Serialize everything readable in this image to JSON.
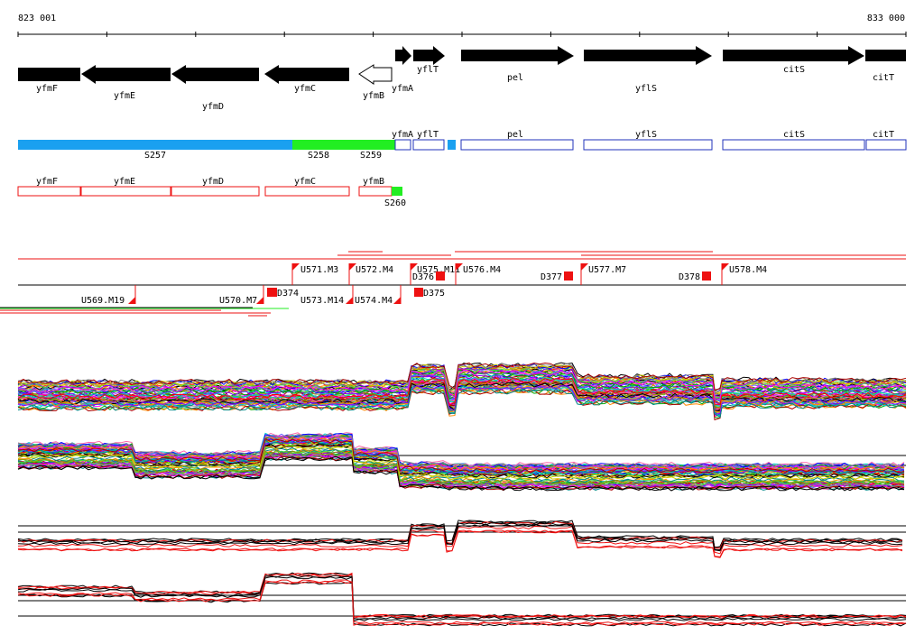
{
  "ruler": {
    "start": "823 001",
    "end": "833 000"
  },
  "colors": {
    "gene": "#000000",
    "blue": "#1aa0f0",
    "green": "#22ee22",
    "navy": "#2233bb",
    "red": "#ee1111",
    "black": "#000000"
  },
  "genes": [
    {
      "label": "yfmF",
      "strand": "minus",
      "filled": true
    },
    {
      "label": "yfmE",
      "strand": "minus",
      "filled": true
    },
    {
      "label": "yfmD",
      "strand": "minus",
      "filled": true
    },
    {
      "label": "yfmC",
      "strand": "minus",
      "filled": true
    },
    {
      "label": "yfmB",
      "strand": "minus",
      "filled": false
    },
    {
      "label": "yfmA",
      "strand": "plus",
      "filled": true
    },
    {
      "label": "yflT",
      "strand": "plus",
      "filled": true
    },
    {
      "label": "pel",
      "strand": "plus",
      "filled": true
    },
    {
      "label": "yflS",
      "strand": "plus",
      "filled": true
    },
    {
      "label": "citS",
      "strand": "plus",
      "filled": true
    },
    {
      "label": "citT",
      "strand": "plus",
      "filled": true
    }
  ],
  "segments_plus": [
    {
      "label": "S257",
      "color": "blue"
    },
    {
      "label": "S258",
      "color": "green"
    },
    {
      "label": "S259",
      "color": "green"
    }
  ],
  "boxes_plus": [
    "yfmA",
    "yflT",
    "pel",
    "yflS",
    "citS",
    "citT"
  ],
  "boxes_minus": [
    "yfmF",
    "yfmE",
    "yfmD",
    "yfmC",
    "yfmB"
  ],
  "segment_minus": {
    "label": "S260",
    "color": "green"
  },
  "tu_plus": [
    "U571.M3",
    "U572.M4",
    "U575.M11",
    "U576.M4",
    "U577.M7",
    "U578.M4"
  ],
  "tu_minus": [
    "U569.M19",
    "U570.M7",
    "U573.M14",
    "U574.M4"
  ],
  "breakpoints": [
    "D374",
    "D375",
    "D376",
    "D377",
    "D378"
  ]
}
